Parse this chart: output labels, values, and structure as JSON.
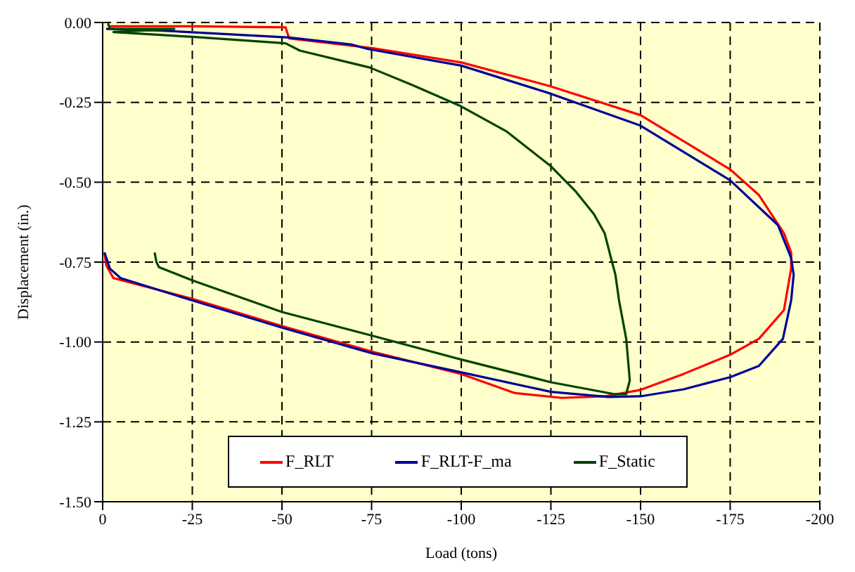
{
  "chart_data": {
    "type": "line",
    "xlabel": "Load (tons)",
    "ylabel": "Displacement (in.)",
    "xlim": [
      0,
      -200
    ],
    "xticks": [
      0,
      -25,
      -50,
      -75,
      -100,
      -125,
      -150,
      -175,
      -200
    ],
    "ylim": [
      -1.5,
      0
    ],
    "yticks": [
      {
        "value": -1.5,
        "label": "-1.50"
      },
      {
        "value": -1.25,
        "label": "-1.25"
      },
      {
        "value": -1,
        "label": "-1.00"
      },
      {
        "value": -0.75,
        "label": "-0.75"
      },
      {
        "value": -0.5,
        "label": "-0.50"
      },
      {
        "value": -0.25,
        "label": "-0.25"
      },
      {
        "value": 0,
        "label": "0.00"
      }
    ],
    "grid": true,
    "legend": "bottom",
    "marker": "none",
    "line_style": "solid",
    "series": [
      {
        "name": "F_RLT",
        "color": "#ff0000",
        "x": [
          -2,
          -25,
          -51,
          -52,
          -75,
          -100,
          -125,
          -150,
          -175,
          -183,
          -190,
          -192,
          -192,
          -190,
          -183,
          -175,
          -162,
          -150,
          -140,
          -128,
          -115,
          -100,
          -75,
          -50,
          -25,
          -3,
          -1,
          -0.5
        ],
        "values": [
          -0.012,
          -0.012,
          -0.015,
          -0.05,
          -0.08,
          -0.125,
          -0.2,
          -0.29,
          -0.46,
          -0.54,
          -0.66,
          -0.72,
          -0.77,
          -0.9,
          -0.99,
          -1.04,
          -1.1,
          -1.15,
          -1.17,
          -1.175,
          -1.16,
          -1.1,
          -1.03,
          -0.95,
          -0.865,
          -0.8,
          -0.76,
          -0.72
        ]
      },
      {
        "name": "F_RLT-F_ma",
        "color": "#000099",
        "x": [
          -1,
          -15.7,
          -52,
          -69.4,
          -74,
          -100,
          -125,
          -150,
          -175,
          -188.3,
          -192,
          -192.7,
          -192,
          -189.7,
          -183,
          -175,
          -162,
          -150,
          -141,
          -125,
          -100,
          -75,
          -50,
          -25,
          -5,
          -2,
          -0.5
        ],
        "values": [
          -0.02,
          -0.025,
          -0.047,
          -0.069,
          -0.083,
          -0.135,
          -0.223,
          -0.323,
          -0.494,
          -0.634,
          -0.737,
          -0.79,
          -0.87,
          -0.99,
          -1.075,
          -1.11,
          -1.148,
          -1.17,
          -1.172,
          -1.156,
          -1.095,
          -1.035,
          -0.955,
          -0.87,
          -0.8,
          -0.77,
          -0.72
        ]
      },
      {
        "name": "F_Static",
        "color": "#004400",
        "x": [
          -1.5,
          -2,
          -20,
          -3,
          -25,
          -51,
          -55,
          -74.5,
          -86,
          -99.5,
          -112.5,
          -125,
          -132,
          -137,
          -140,
          -141.7,
          -143,
          -144,
          -146,
          -147,
          -146,
          -142.6,
          -125,
          -100,
          -75,
          -50,
          -25,
          -15.7,
          -15,
          -14.5
        ],
        "values": [
          -0.003,
          -0.02,
          -0.02,
          -0.03,
          -0.045,
          -0.065,
          -0.088,
          -0.141,
          -0.194,
          -0.26,
          -0.34,
          -0.45,
          -0.53,
          -0.6,
          -0.66,
          -0.735,
          -0.79,
          -0.87,
          -0.99,
          -1.12,
          -1.163,
          -1.163,
          -1.126,
          -1.055,
          -0.98,
          -0.906,
          -0.807,
          -0.766,
          -0.75,
          -0.72
        ]
      }
    ]
  }
}
